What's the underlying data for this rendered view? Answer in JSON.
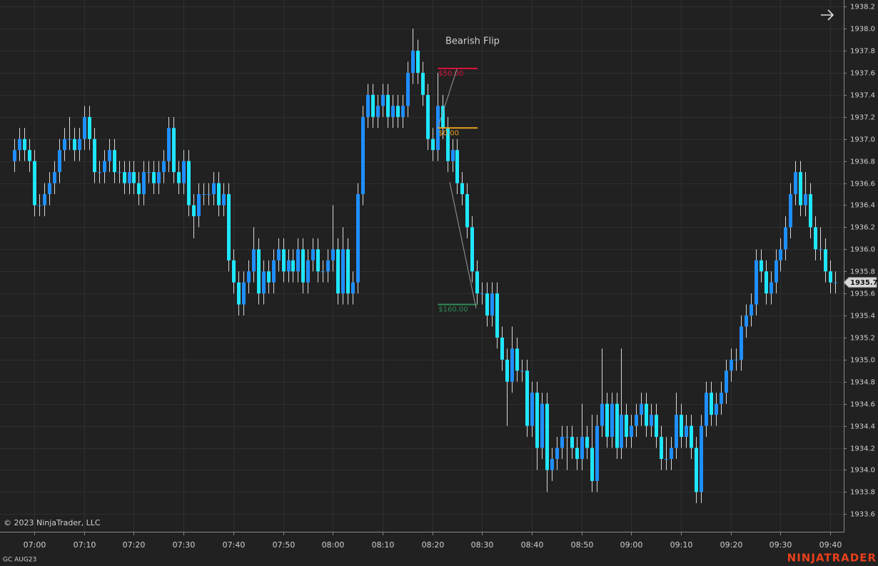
{
  "chart_data": {
    "type": "candlestick",
    "symbol": "GC AUG23",
    "copyright": "© 2023 NinjaTrader, LLC",
    "brand": "NINJATRADER",
    "up_color": "#1e8fff",
    "down_color": "#1fe6ff",
    "grid": true,
    "xlim": [
      413.1,
      582.7
    ],
    "xticks": [
      {
        "value": 420,
        "label": "07:00"
      },
      {
        "value": 430,
        "label": "07:10"
      },
      {
        "value": 440,
        "label": "07:20"
      },
      {
        "value": 450,
        "label": "07:30"
      },
      {
        "value": 460,
        "label": "07:40"
      },
      {
        "value": 470,
        "label": "07:50"
      },
      {
        "value": 480,
        "label": "08:00"
      },
      {
        "value": 490,
        "label": "08:10"
      },
      {
        "value": 500,
        "label": "08:20"
      },
      {
        "value": 510,
        "label": "08:30"
      },
      {
        "value": 520,
        "label": "08:40"
      },
      {
        "value": 530,
        "label": "08:50"
      },
      {
        "value": 540,
        "label": "09:00"
      },
      {
        "value": 550,
        "label": "09:10"
      },
      {
        "value": 560,
        "label": "09:20"
      },
      {
        "value": 570,
        "label": "09:30"
      },
      {
        "value": 580,
        "label": "09:40"
      }
    ],
    "ylim": [
      1933.44,
      1938.26
    ],
    "yticks": [
      1933.6,
      1933.8,
      {
        "value": 1934.0,
        "label": "1934.0"
      },
      1934.2,
      1934.4,
      1934.6,
      1934.8,
      {
        "value": 1935.0,
        "label": "1935.0"
      },
      1935.2,
      1935.4,
      1935.6,
      1935.8,
      {
        "value": 1936.0,
        "label": "1936.0"
      },
      1936.2,
      1936.4,
      1936.6,
      1936.8,
      {
        "value": 1937.0,
        "label": "1937.0"
      },
      1937.2,
      1937.4,
      1937.6,
      1937.8,
      {
        "value": 1938.0,
        "label": "1938.0"
      },
      1938.2
    ],
    "last_price": 1935.7,
    "x": [
      416,
      417,
      418,
      419,
      420,
      421,
      422,
      423,
      424,
      425,
      426,
      427,
      428,
      429,
      430,
      431,
      432,
      433,
      434,
      435,
      436,
      437,
      438,
      439,
      440,
      441,
      442,
      443,
      444,
      445,
      446,
      447,
      448,
      449,
      450,
      451,
      452,
      453,
      454,
      455,
      456,
      457,
      458,
      459,
      460,
      461,
      462,
      463,
      464,
      465,
      466,
      467,
      468,
      469,
      470,
      471,
      472,
      473,
      474,
      475,
      476,
      477,
      478,
      479,
      480,
      481,
      482,
      483,
      484,
      485,
      486,
      487,
      488,
      489,
      490,
      491,
      492,
      493,
      494,
      495,
      496,
      497,
      498,
      499,
      500,
      501,
      502,
      503,
      504,
      505,
      506,
      507,
      508,
      509,
      510,
      511,
      512,
      513,
      514,
      515,
      516,
      517,
      518,
      519,
      520,
      521,
      522,
      523,
      524,
      525,
      526,
      527,
      528,
      529,
      530,
      531,
      532,
      533,
      534,
      535,
      536,
      537,
      538,
      539,
      540,
      541,
      542,
      543,
      544,
      545,
      546,
      547,
      548,
      549,
      550,
      551,
      552,
      553,
      554,
      555,
      556,
      557,
      558,
      559,
      560,
      561,
      562,
      563,
      564,
      565,
      566,
      567,
      568,
      569,
      570,
      571,
      572,
      573,
      574,
      575,
      576,
      577,
      578,
      579,
      580,
      581
    ],
    "ohlc": [
      [
        1936.8,
        1937.0,
        1936.7,
        1936.9
      ],
      [
        1936.9,
        1937.1,
        1936.8,
        1937.0
      ],
      [
        1937.0,
        1937.1,
        1936.8,
        1936.9
      ],
      [
        1936.9,
        1937.0,
        1936.7,
        1936.8
      ],
      [
        1936.8,
        1936.9,
        1936.3,
        1936.4
      ],
      [
        1936.4,
        1936.5,
        1936.3,
        1936.4
      ],
      [
        1936.4,
        1936.6,
        1936.3,
        1936.5
      ],
      [
        1936.5,
        1936.7,
        1936.4,
        1936.6
      ],
      [
        1936.6,
        1936.8,
        1936.5,
        1936.7
      ],
      [
        1936.7,
        1937.0,
        1936.6,
        1936.9
      ],
      [
        1936.9,
        1937.1,
        1936.8,
        1937.0
      ],
      [
        1937.0,
        1937.2,
        1936.9,
        1937.0
      ],
      [
        1937.0,
        1937.1,
        1936.8,
        1936.9
      ],
      [
        1936.9,
        1937.1,
        1936.8,
        1937.0
      ],
      [
        1937.0,
        1937.3,
        1936.9,
        1937.2
      ],
      [
        1937.2,
        1937.3,
        1936.9,
        1937.0
      ],
      [
        1937.0,
        1937.1,
        1936.6,
        1936.7
      ],
      [
        1936.7,
        1936.8,
        1936.6,
        1936.7
      ],
      [
        1936.7,
        1936.9,
        1936.6,
        1936.8
      ],
      [
        1936.8,
        1937.0,
        1936.7,
        1936.9
      ],
      [
        1936.9,
        1937.0,
        1936.6,
        1936.7
      ],
      [
        1936.7,
        1936.8,
        1936.6,
        1936.7
      ],
      [
        1936.7,
        1936.8,
        1936.5,
        1936.6
      ],
      [
        1936.6,
        1936.8,
        1936.5,
        1936.7
      ],
      [
        1936.7,
        1936.8,
        1936.5,
        1936.6
      ],
      [
        1936.6,
        1936.7,
        1936.4,
        1936.5
      ],
      [
        1936.5,
        1936.8,
        1936.4,
        1936.7
      ],
      [
        1936.7,
        1936.8,
        1936.6,
        1936.7
      ],
      [
        1936.7,
        1936.8,
        1936.5,
        1936.6
      ],
      [
        1936.6,
        1936.8,
        1936.5,
        1936.7
      ],
      [
        1936.7,
        1936.9,
        1936.6,
        1936.8
      ],
      [
        1936.8,
        1937.2,
        1936.7,
        1937.1
      ],
      [
        1937.1,
        1937.2,
        1936.6,
        1936.7
      ],
      [
        1936.7,
        1936.8,
        1936.5,
        1936.6
      ],
      [
        1936.6,
        1936.9,
        1936.5,
        1936.8
      ],
      [
        1936.8,
        1936.9,
        1936.3,
        1936.4
      ],
      [
        1936.4,
        1936.5,
        1936.1,
        1936.3
      ],
      [
        1936.3,
        1936.6,
        1936.2,
        1936.5
      ],
      [
        1936.5,
        1936.6,
        1936.4,
        1936.5
      ],
      [
        1936.5,
        1936.6,
        1936.4,
        1936.5
      ],
      [
        1936.5,
        1936.7,
        1936.4,
        1936.6
      ],
      [
        1936.6,
        1936.7,
        1936.3,
        1936.4
      ],
      [
        1936.4,
        1936.6,
        1936.3,
        1936.5
      ],
      [
        1936.5,
        1936.6,
        1935.8,
        1935.9
      ],
      [
        1935.9,
        1936.0,
        1935.6,
        1935.7
      ],
      [
        1935.7,
        1935.8,
        1935.4,
        1935.5
      ],
      [
        1935.5,
        1935.8,
        1935.4,
        1935.7
      ],
      [
        1935.7,
        1935.9,
        1935.6,
        1935.8
      ],
      [
        1935.8,
        1936.2,
        1935.7,
        1936.0
      ],
      [
        1936.0,
        1936.1,
        1935.5,
        1935.6
      ],
      [
        1935.6,
        1935.9,
        1935.5,
        1935.8
      ],
      [
        1935.8,
        1935.9,
        1935.6,
        1935.7
      ],
      [
        1935.7,
        1936.0,
        1935.6,
        1935.9
      ],
      [
        1935.9,
        1936.1,
        1935.8,
        1936.0
      ],
      [
        1936.0,
        1936.1,
        1935.7,
        1935.8
      ],
      [
        1935.8,
        1936.0,
        1935.7,
        1935.9
      ],
      [
        1935.9,
        1936.0,
        1935.7,
        1935.8
      ],
      [
        1935.8,
        1936.1,
        1935.7,
        1936.0
      ],
      [
        1936.0,
        1936.1,
        1935.6,
        1935.7
      ],
      [
        1935.7,
        1936.0,
        1935.6,
        1935.9
      ],
      [
        1935.9,
        1936.1,
        1935.8,
        1936.0
      ],
      [
        1936.0,
        1936.1,
        1935.7,
        1935.8
      ],
      [
        1935.8,
        1935.9,
        1935.7,
        1935.8
      ],
      [
        1935.8,
        1936.0,
        1935.7,
        1935.9
      ],
      [
        1935.9,
        1936.4,
        1935.8,
        1936.0
      ],
      [
        1936.0,
        1936.1,
        1935.5,
        1935.6
      ],
      [
        1935.6,
        1936.2,
        1935.5,
        1936.0
      ],
      [
        1936.0,
        1936.1,
        1935.5,
        1935.6
      ],
      [
        1935.6,
        1935.8,
        1935.5,
        1935.7
      ],
      [
        1935.7,
        1936.6,
        1935.6,
        1936.5
      ],
      [
        1936.5,
        1937.3,
        1936.4,
        1937.2
      ],
      [
        1937.2,
        1937.5,
        1937.1,
        1937.4
      ],
      [
        1937.4,
        1937.5,
        1937.1,
        1937.2
      ],
      [
        1937.2,
        1937.4,
        1937.1,
        1937.3
      ],
      [
        1937.3,
        1937.5,
        1937.2,
        1937.4
      ],
      [
        1937.4,
        1937.5,
        1937.1,
        1937.2
      ],
      [
        1937.2,
        1937.4,
        1937.1,
        1937.3
      ],
      [
        1937.3,
        1937.4,
        1937.1,
        1937.2
      ],
      [
        1937.2,
        1937.4,
        1937.1,
        1937.3
      ],
      [
        1937.3,
        1937.7,
        1937.2,
        1937.6
      ],
      [
        1937.6,
        1938.0,
        1937.5,
        1937.8
      ],
      [
        1937.8,
        1937.9,
        1937.5,
        1937.6
      ],
      [
        1937.6,
        1937.7,
        1937.3,
        1937.4
      ],
      [
        1937.4,
        1937.5,
        1936.9,
        1937.0
      ],
      [
        1937.0,
        1937.1,
        1936.8,
        1936.9
      ],
      [
        1936.9,
        1937.6,
        1936.8,
        1937.3
      ],
      [
        1937.3,
        1937.4,
        1937.0,
        1937.1
      ],
      [
        1937.1,
        1937.2,
        1936.7,
        1936.8
      ],
      [
        1936.8,
        1937.0,
        1936.7,
        1936.9
      ],
      [
        1936.9,
        1937.0,
        1936.5,
        1936.6
      ],
      [
        1936.6,
        1936.7,
        1936.4,
        1936.5
      ],
      [
        1936.5,
        1936.6,
        1936.1,
        1936.2
      ],
      [
        1936.2,
        1936.3,
        1935.7,
        1935.8
      ],
      [
        1935.8,
        1935.9,
        1935.5,
        1935.6
      ],
      [
        1935.6,
        1935.7,
        1935.5,
        1935.6
      ],
      [
        1935.6,
        1935.7,
        1935.3,
        1935.4
      ],
      [
        1935.4,
        1935.7,
        1935.3,
        1935.6
      ],
      [
        1935.6,
        1935.7,
        1935.1,
        1935.2
      ],
      [
        1935.2,
        1935.3,
        1934.9,
        1935.0
      ],
      [
        1935.0,
        1935.1,
        1934.4,
        1934.8
      ],
      [
        1934.8,
        1935.3,
        1934.7,
        1935.1
      ],
      [
        1935.1,
        1935.2,
        1934.8,
        1934.9
      ],
      [
        1934.9,
        1935.0,
        1934.8,
        1934.9
      ],
      [
        1934.9,
        1935.0,
        1934.3,
        1934.4
      ],
      [
        1934.4,
        1934.8,
        1934.3,
        1934.7
      ],
      [
        1934.7,
        1934.8,
        1934.0,
        1934.2
      ],
      [
        1934.2,
        1934.7,
        1934.1,
        1934.6
      ],
      [
        1934.6,
        1934.7,
        1933.8,
        1934.0
      ],
      [
        1934.0,
        1934.2,
        1933.9,
        1934.1
      ],
      [
        1934.1,
        1934.3,
        1934.0,
        1934.2
      ],
      [
        1934.2,
        1934.4,
        1934.1,
        1934.3
      ],
      [
        1934.3,
        1934.4,
        1934.0,
        1934.3
      ],
      [
        1934.3,
        1934.4,
        1934.1,
        1934.2
      ],
      [
        1934.2,
        1934.3,
        1934.0,
        1934.1
      ],
      [
        1934.1,
        1934.6,
        1934.0,
        1934.3
      ],
      [
        1934.3,
        1934.4,
        1934.1,
        1934.2
      ],
      [
        1934.2,
        1934.5,
        1933.8,
        1933.9
      ],
      [
        1933.9,
        1934.5,
        1933.8,
        1934.4
      ],
      [
        1934.4,
        1935.1,
        1934.3,
        1934.6
      ],
      [
        1934.6,
        1934.7,
        1934.2,
        1934.3
      ],
      [
        1934.3,
        1934.7,
        1934.2,
        1934.6
      ],
      [
        1934.6,
        1934.7,
        1934.1,
        1934.2
      ],
      [
        1934.2,
        1935.1,
        1934.1,
        1934.5
      ],
      [
        1934.5,
        1934.6,
        1934.2,
        1934.3
      ],
      [
        1934.3,
        1934.5,
        1934.2,
        1934.4
      ],
      [
        1934.4,
        1934.6,
        1934.3,
        1934.5
      ],
      [
        1934.5,
        1934.7,
        1934.4,
        1934.6
      ],
      [
        1934.6,
        1934.7,
        1934.3,
        1934.4
      ],
      [
        1934.4,
        1934.6,
        1934.3,
        1934.5
      ],
      [
        1934.5,
        1934.6,
        1934.2,
        1934.3
      ],
      [
        1934.3,
        1934.4,
        1934.0,
        1934.1
      ],
      [
        1934.1,
        1934.3,
        1934.0,
        1934.1
      ],
      [
        1934.1,
        1934.3,
        1934.0,
        1934.2
      ],
      [
        1934.2,
        1934.7,
        1934.1,
        1934.5
      ],
      [
        1934.5,
        1934.6,
        1934.2,
        1934.3
      ],
      [
        1934.3,
        1934.5,
        1934.2,
        1934.4
      ],
      [
        1934.4,
        1934.5,
        1934.1,
        1934.2
      ],
      [
        1934.2,
        1934.3,
        1933.7,
        1933.8
      ],
      [
        1933.8,
        1934.5,
        1933.7,
        1934.4
      ],
      [
        1934.4,
        1934.8,
        1934.3,
        1934.7
      ],
      [
        1934.7,
        1934.8,
        1934.4,
        1934.5
      ],
      [
        1934.5,
        1934.7,
        1934.4,
        1934.6
      ],
      [
        1934.6,
        1934.8,
        1934.5,
        1934.7
      ],
      [
        1934.7,
        1935.0,
        1934.6,
        1934.9
      ],
      [
        1934.9,
        1935.1,
        1934.8,
        1935.0
      ],
      [
        1935.0,
        1935.1,
        1934.9,
        1935.0
      ],
      [
        1935.0,
        1935.4,
        1934.9,
        1935.3
      ],
      [
        1935.3,
        1935.5,
        1935.2,
        1935.4
      ],
      [
        1935.4,
        1935.6,
        1935.3,
        1935.5
      ],
      [
        1935.5,
        1936.0,
        1935.4,
        1935.9
      ],
      [
        1935.9,
        1936.0,
        1935.7,
        1935.8
      ],
      [
        1935.8,
        1935.9,
        1935.5,
        1935.6
      ],
      [
        1935.6,
        1935.8,
        1935.5,
        1935.7
      ],
      [
        1935.7,
        1936.0,
        1935.6,
        1935.9
      ],
      [
        1935.9,
        1936.1,
        1935.8,
        1936.0
      ],
      [
        1936.0,
        1936.3,
        1935.9,
        1936.2
      ],
      [
        1936.2,
        1936.6,
        1936.1,
        1936.5
      ],
      [
        1936.5,
        1936.8,
        1936.4,
        1936.7
      ],
      [
        1936.7,
        1936.8,
        1936.3,
        1936.4
      ],
      [
        1936.4,
        1936.7,
        1936.3,
        1936.5
      ],
      [
        1936.5,
        1936.6,
        1936.1,
        1936.2
      ],
      [
        1936.2,
        1936.3,
        1935.9,
        1936.0
      ],
      [
        1936.0,
        1936.2,
        1935.9,
        1936.0
      ],
      [
        1936.0,
        1936.1,
        1935.7,
        1935.8
      ],
      [
        1935.8,
        1935.9,
        1935.6,
        1935.7
      ],
      [
        1935.7,
        1935.8,
        1935.6,
        1935.7
      ]
    ],
    "annotation": "Bearish Flip",
    "levels": [
      {
        "label": "$50.00",
        "price": 1937.64,
        "x_start": 501.1,
        "x_end": 509.1,
        "color": "#dc143c"
      },
      {
        "label": "$0.00",
        "price": 1937.1,
        "x_start": 501.1,
        "x_end": 509.1,
        "color": "#e6a020"
      },
      {
        "label": "$160.00",
        "price": 1935.5,
        "x_start": 501.1,
        "x_end": 509.1,
        "color": "#2e8b57"
      }
    ]
  }
}
